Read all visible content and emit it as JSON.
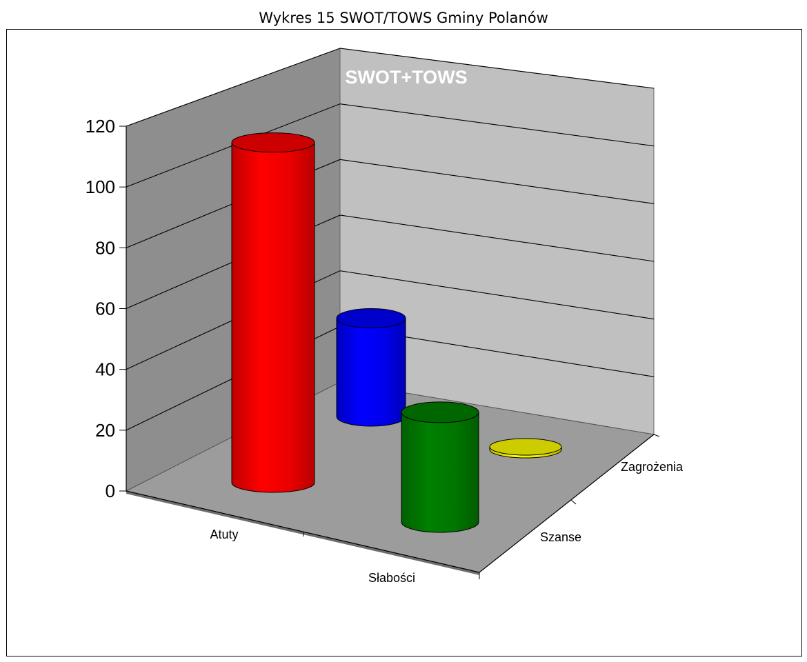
{
  "caption": "Wykres 15 SWOT/TOWS Gminy Polanów",
  "chart_data": {
    "type": "bar",
    "style": "3d-cylinder",
    "title": "SWOT+TOWS",
    "xlabel": "",
    "ylabel": "",
    "ylim": [
      0,
      120
    ],
    "yticks": [
      "0",
      "20",
      "40",
      "60",
      "80",
      "100",
      "120"
    ],
    "series_axis": [
      "Zagrożenia",
      "Szanse"
    ],
    "category_axis": [
      "Atuty",
      "Słabości"
    ],
    "legend": "none",
    "grid": true,
    "bars": [
      {
        "name": "Atuty",
        "value": 115,
        "color": "#ff0000"
      },
      {
        "name": "Słabości",
        "value": 37,
        "color": "#0000ff"
      },
      {
        "name": "Szanse",
        "value": 41,
        "color": "#008000"
      },
      {
        "name": "Zagrożenia",
        "value": 1,
        "color": "#ffff00"
      }
    ]
  }
}
